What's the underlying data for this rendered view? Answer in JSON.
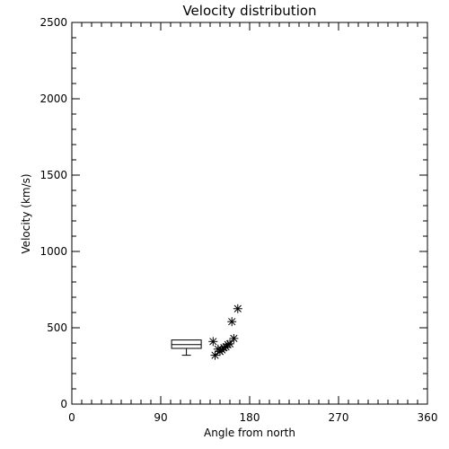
{
  "chart_data": {
    "type": "scatter",
    "title": "Velocity distribution",
    "xlabel": "Angle from north",
    "ylabel": "Velocity (km/s)",
    "xlim": [
      0,
      360
    ],
    "ylim": [
      0,
      2500
    ],
    "xticks": [
      0,
      90,
      180,
      270,
      360
    ],
    "yticks": [
      0,
      500,
      1000,
      1500,
      2000,
      2500
    ],
    "grid": false,
    "points": [
      {
        "x": 143,
        "y": 410
      },
      {
        "x": 145,
        "y": 320
      },
      {
        "x": 148,
        "y": 360
      },
      {
        "x": 150,
        "y": 345
      },
      {
        "x": 152,
        "y": 355
      },
      {
        "x": 154,
        "y": 370
      },
      {
        "x": 156,
        "y": 375
      },
      {
        "x": 158,
        "y": 390
      },
      {
        "x": 160,
        "y": 395
      },
      {
        "x": 162,
        "y": 540
      },
      {
        "x": 164,
        "y": 430
      },
      {
        "x": 168,
        "y": 625
      }
    ],
    "boxplot": {
      "x_range": [
        101,
        131
      ],
      "whisker_low": 320,
      "q1": 365,
      "median": 390,
      "q3": 420,
      "whisker_high": 420
    },
    "marker": "asterisk",
    "color": "#000000"
  }
}
